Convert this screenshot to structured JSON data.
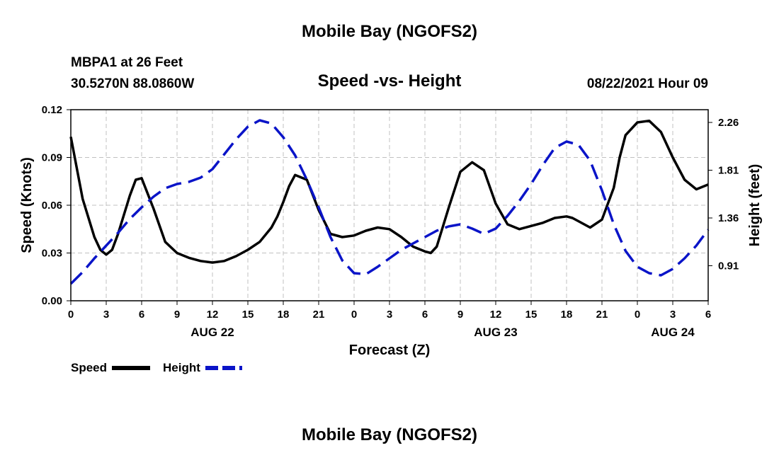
{
  "page": {
    "title_top": "Mobile Bay (NGOFS2)",
    "title_bottom": "Mobile Bay (NGOFS2)",
    "station_line": "MBPA1 at 26 Feet",
    "coords_line": "30.5270N  88.0860W",
    "subtitle": "Speed -vs- Height",
    "run_time": "08/22/2021 Hour 09"
  },
  "colors": {
    "speed": "#000000",
    "height": "#0a14c8",
    "grid": "#c0c0c0"
  },
  "chart_data": {
    "type": "line",
    "title": "Speed -vs- Height",
    "xlabel": "Forecast (Z)",
    "x_ticks": [
      "0",
      "3",
      "6",
      "9",
      "12",
      "15",
      "18",
      "21",
      "0",
      "3",
      "6",
      "9",
      "12",
      "15",
      "18",
      "21",
      "0",
      "3",
      "6"
    ],
    "x_range_hours": [
      0,
      54
    ],
    "date_labels": [
      {
        "label": "AUG 22",
        "hour": 12
      },
      {
        "label": "AUG 23",
        "hour": 36
      },
      {
        "label": "AUG 24",
        "hour": 51
      }
    ],
    "left_axis": {
      "label": "Speed (Knots)",
      "ticks": [
        "0.00",
        "0.03",
        "0.06",
        "0.09",
        "0.12"
      ],
      "range": [
        0,
        0.12
      ]
    },
    "right_axis": {
      "label": "Height (feet)",
      "ticks": [
        "0.91",
        "1.36",
        "1.81",
        "2.26"
      ],
      "range": [
        0.58,
        2.38
      ]
    },
    "grid": true,
    "legend": {
      "position": "bottom-left",
      "items": [
        {
          "name": "Speed"
        },
        {
          "name": "Height"
        }
      ]
    },
    "series": [
      {
        "name": "Speed",
        "axis": "left",
        "style": "solid",
        "x": [
          0,
          1,
          2,
          2.5,
          3,
          3.5,
          4,
          5,
          5.5,
          6,
          7,
          8,
          9,
          10,
          11,
          12,
          13,
          14,
          15,
          16,
          17,
          17.5,
          18,
          18.5,
          19,
          20,
          21,
          22,
          23,
          24,
          25,
          26,
          27,
          28,
          29,
          30,
          30.5,
          31,
          32,
          33,
          34,
          35,
          36,
          37,
          38,
          39,
          40,
          41,
          42,
          42.5,
          43,
          43.5,
          44,
          45,
          46,
          46.5,
          47,
          48,
          49,
          50,
          51,
          52,
          53,
          54
        ],
        "y": [
          0.103,
          0.064,
          0.04,
          0.032,
          0.029,
          0.032,
          0.042,
          0.066,
          0.076,
          0.077,
          0.058,
          0.037,
          0.03,
          0.027,
          0.025,
          0.024,
          0.025,
          0.028,
          0.032,
          0.037,
          0.046,
          0.053,
          0.062,
          0.072,
          0.079,
          0.076,
          0.057,
          0.042,
          0.04,
          0.041,
          0.044,
          0.046,
          0.045,
          0.04,
          0.034,
          0.031,
          0.03,
          0.034,
          0.058,
          0.081,
          0.087,
          0.082,
          0.061,
          0.048,
          0.045,
          0.047,
          0.049,
          0.052,
          0.053,
          0.052,
          0.05,
          0.048,
          0.046,
          0.051,
          0.071,
          0.09,
          0.104,
          0.112,
          0.113,
          0.106,
          0.09,
          0.076,
          0.07,
          0.073
        ]
      },
      {
        "name": "Height",
        "axis": "right",
        "style": "dashed",
        "x": [
          0,
          1,
          2,
          3,
          4,
          5,
          6,
          7,
          8,
          9,
          10,
          11,
          12,
          13,
          14,
          15,
          16,
          17,
          18,
          19,
          20,
          21,
          22,
          23,
          24,
          25,
          26,
          27,
          28,
          29,
          30,
          31,
          32,
          33,
          34,
          35,
          36,
          37,
          38,
          39,
          40,
          41,
          42,
          43,
          44,
          45,
          46,
          47,
          48,
          49,
          50,
          51,
          52,
          53,
          54
        ],
        "y": [
          0.74,
          0.85,
          0.98,
          1.1,
          1.22,
          1.35,
          1.46,
          1.56,
          1.64,
          1.68,
          1.7,
          1.74,
          1.82,
          1.96,
          2.1,
          2.22,
          2.28,
          2.25,
          2.12,
          1.95,
          1.72,
          1.46,
          1.18,
          0.96,
          0.84,
          0.83,
          0.9,
          0.98,
          1.06,
          1.12,
          1.18,
          1.24,
          1.28,
          1.3,
          1.26,
          1.21,
          1.26,
          1.38,
          1.52,
          1.68,
          1.86,
          2.02,
          2.08,
          2.05,
          1.9,
          1.62,
          1.3,
          1.05,
          0.9,
          0.84,
          0.82,
          0.88,
          0.98,
          1.1,
          1.25
        ]
      }
    ]
  }
}
